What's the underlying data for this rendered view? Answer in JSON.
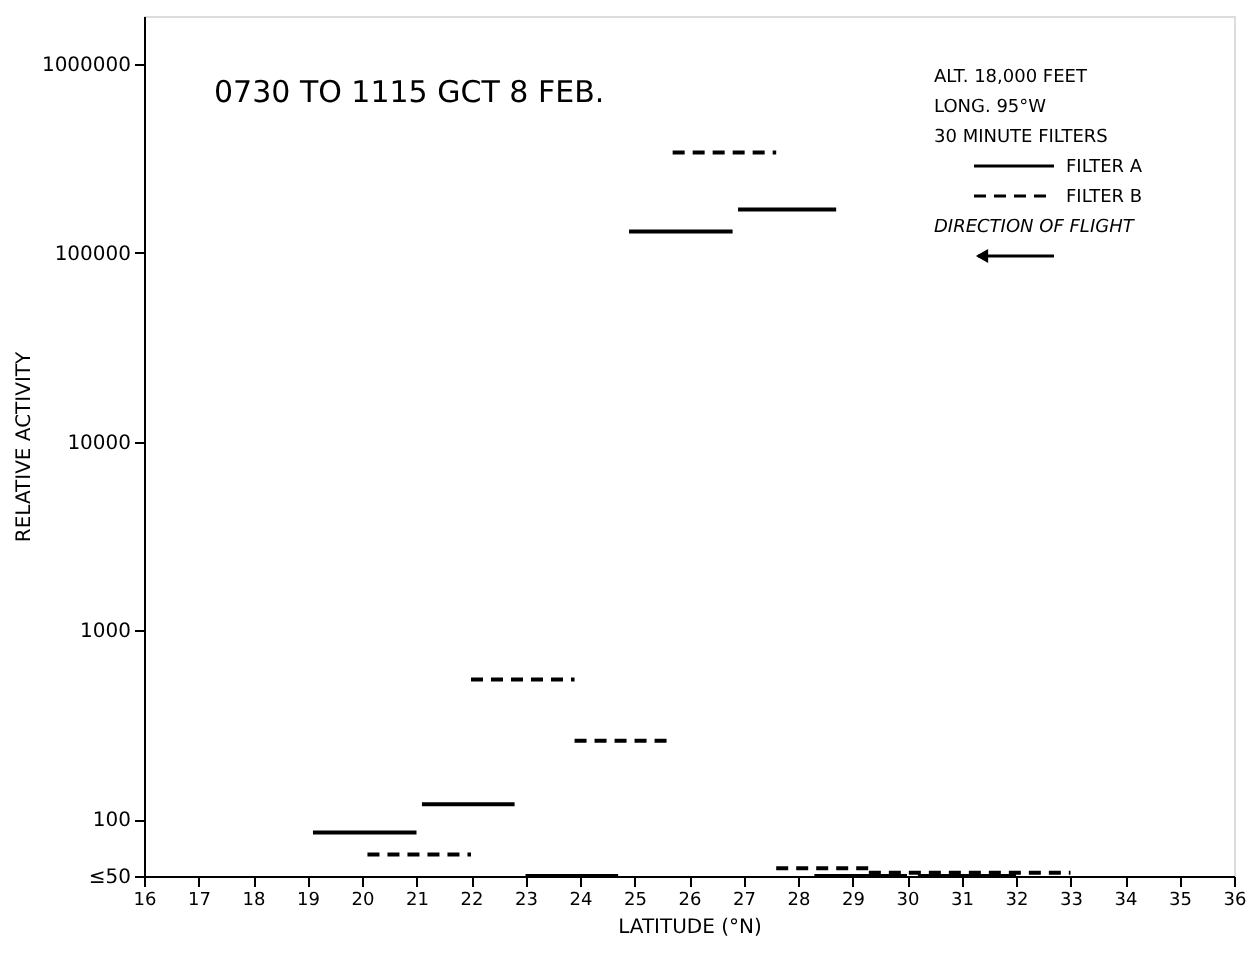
{
  "chart_data": {
    "type": "line",
    "title": "0730 TO 1115 GCT  8 FEB.",
    "xlabel": "LATITUDE (°N)",
    "ylabel": "RELATIVE ACTIVITY",
    "annotations": [
      "ALT. 18,000 FEET",
      "LONG. 95°W",
      "30 MINUTE FILTERS",
      "DIRECTION OF FLIGHT"
    ],
    "series": [
      {
        "name": "FILTER A",
        "color": "#000000",
        "line_style": "solid",
        "x": [
          19.1,
          21.0,
          null,
          21.1,
          22.8,
          null,
          23.0,
          24.7,
          null,
          24.9,
          26.8,
          null,
          26.9,
          28.7,
          null,
          28.3,
          30.0,
          null,
          30.2,
          32.0
        ],
        "values": [
          85,
          85,
          null,
          120,
          120,
          null,
          50,
          50,
          null,
          130000,
          130000,
          null,
          170000,
          170000,
          null,
          50,
          50,
          null,
          50,
          50
        ]
      },
      {
        "name": "FILTER B",
        "color": "#000000",
        "line_style": "dashed",
        "x": [
          20.1,
          22.0,
          null,
          22.0,
          23.9,
          null,
          23.9,
          25.7,
          null,
          25.7,
          27.6,
          null,
          27.6,
          29.3,
          null,
          29.3,
          33.0
        ],
        "values": [
          65,
          65,
          null,
          550,
          550,
          null,
          260,
          260,
          null,
          340000,
          340000,
          null,
          55,
          55,
          null,
          52,
          52
        ]
      }
    ],
    "log": true,
    "xlim": [
      16,
      36
    ],
    "xticks": [
      16,
      17,
      18,
      19,
      20,
      21,
      22,
      23,
      24,
      25,
      26,
      27,
      28,
      29,
      30,
      31,
      32,
      33,
      34,
      35,
      36
    ],
    "ylim": [
      50,
      1800000
    ],
    "yticks": [
      {
        "value": 50,
        "label": "≤50"
      },
      100,
      1000,
      10000,
      100000,
      1000000
    ],
    "grid": false,
    "legend": "top right",
    "marker": "none"
  }
}
